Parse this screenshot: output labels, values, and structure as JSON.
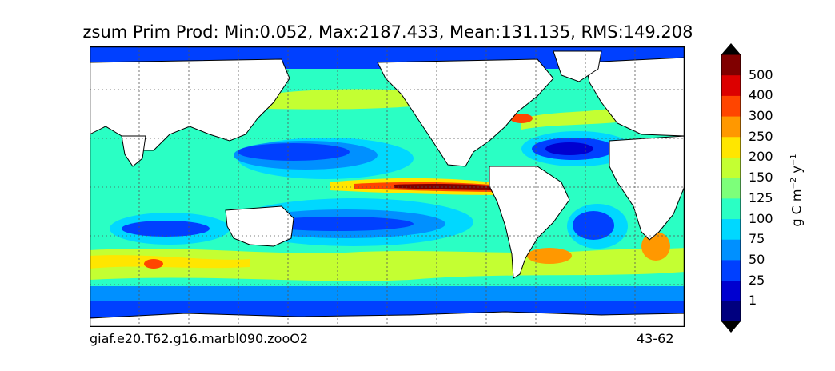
{
  "title": "zsum Prim Prod: Min:0.052, Max:2187.433, Mean:131.135, RMS:149.208",
  "footer": {
    "case_name": "giaf.e20.T62.g16.marbl090.zooO2",
    "years": "43-62"
  },
  "colorbar": {
    "unit_text": "g C m",
    "unit_exp1": "−2",
    "unit_mid": " y",
    "unit_exp2": "−1",
    "labels": [
      "1",
      "25",
      "50",
      "75",
      "100",
      "125",
      "150",
      "200",
      "250",
      "300",
      "400",
      "500"
    ],
    "colors": [
      "#00007f",
      "#0000d0",
      "#0040ff",
      "#0090ff",
      "#00d8ff",
      "#2affc4",
      "#7dff7a",
      "#c4ff32",
      "#ffe600",
      "#ff9800",
      "#ff4500",
      "#dc0000",
      "#800000"
    ]
  }
}
